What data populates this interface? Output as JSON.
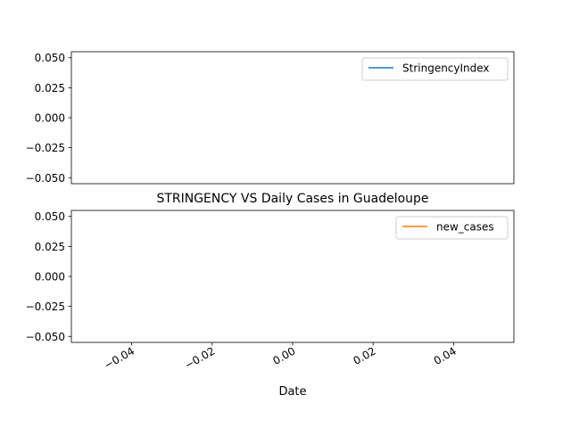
{
  "chart_data": [
    {
      "type": "line",
      "title": "",
      "xlabel": "",
      "ylabel": "",
      "ylim": [
        -0.055,
        0.055
      ],
      "xlim": [
        -0.055,
        0.055
      ],
      "yticks": [
        "0.050",
        "0.025",
        "0.000",
        "−0.025",
        "−0.050"
      ],
      "ytick_values": [
        0.05,
        0.025,
        0.0,
        -0.025,
        -0.05
      ],
      "legend_position": "upper right",
      "grid": false,
      "series": [
        {
          "name": "StringencyIndex",
          "color": "#1f77b4",
          "x": [],
          "values": []
        }
      ]
    },
    {
      "type": "line",
      "title": "STRINGENCY VS Daily Cases in Guadeloupe",
      "xlabel": "Date",
      "ylabel": "",
      "ylim": [
        -0.055,
        0.055
      ],
      "xlim": [
        -0.055,
        0.055
      ],
      "yticks": [
        "0.050",
        "0.025",
        "0.000",
        "−0.025",
        "−0.050"
      ],
      "ytick_values": [
        0.05,
        0.025,
        0.0,
        -0.025,
        -0.05
      ],
      "xticks": [
        "−0.04",
        "−0.02",
        "0.00",
        "0.02",
        "0.04"
      ],
      "xtick_values": [
        -0.04,
        -0.02,
        0.0,
        0.02,
        0.04
      ],
      "xtick_rotation": 30,
      "legend_position": "upper right",
      "grid": false,
      "series": [
        {
          "name": "new_cases",
          "color": "#ff7f0e",
          "x": [],
          "values": []
        }
      ]
    }
  ]
}
